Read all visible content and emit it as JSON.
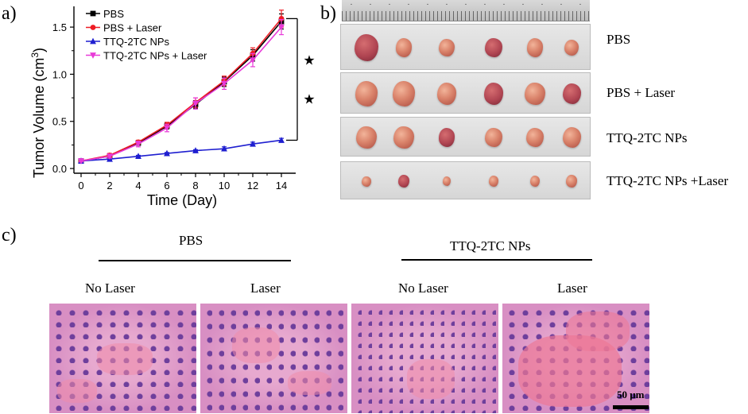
{
  "panels": {
    "a": "a)",
    "b": "b)",
    "c": "c)"
  },
  "chart_data": {
    "type": "line",
    "xlabel": "Time (Day)",
    "ylabel_main": "Tumor Volume (cm",
    "ylabel_sup": "3",
    "ylabel_close": ")",
    "xlim": [
      -0.5,
      15
    ],
    "ylim": [
      -0.05,
      1.72
    ],
    "xticks": [
      0,
      2,
      4,
      6,
      8,
      10,
      12,
      14
    ],
    "yticks": [
      0.0,
      0.5,
      1.0,
      1.5
    ],
    "ytick_labels": [
      "0.0",
      "0.5",
      "1.0",
      "1.5"
    ],
    "series": [
      {
        "name": "PBS",
        "color": "#000000",
        "marker": "square",
        "x": [
          0,
          2,
          4,
          6,
          8,
          10,
          12,
          14
        ],
        "y": [
          0.08,
          0.13,
          0.27,
          0.45,
          0.68,
          0.92,
          1.2,
          1.56
        ],
        "err": [
          0.01,
          0.02,
          0.02,
          0.03,
          0.04,
          0.05,
          0.06,
          0.08
        ]
      },
      {
        "name": "PBS + Laser",
        "color": "#ee1c24",
        "marker": "circle",
        "x": [
          0,
          2,
          4,
          6,
          8,
          10,
          12,
          14
        ],
        "y": [
          0.08,
          0.14,
          0.28,
          0.46,
          0.7,
          0.93,
          1.22,
          1.59
        ],
        "err": [
          0.01,
          0.02,
          0.02,
          0.03,
          0.05,
          0.05,
          0.06,
          0.09
        ]
      },
      {
        "name": "TTQ-2TC NPs",
        "color": "#1f1fd0",
        "marker": "triangle-up",
        "x": [
          0,
          2,
          4,
          6,
          8,
          10,
          12,
          14
        ],
        "y": [
          0.08,
          0.1,
          0.13,
          0.16,
          0.19,
          0.21,
          0.26,
          0.3
        ],
        "err": [
          0.01,
          0.01,
          0.01,
          0.01,
          0.01,
          0.02,
          0.02,
          0.02
        ]
      },
      {
        "name": "TTQ-2TC NPs + Laser",
        "color": "#e83ad8",
        "marker": "triangle-down",
        "x": [
          0,
          2,
          4,
          6,
          8,
          10,
          12,
          14
        ],
        "y": [
          0.08,
          0.13,
          0.26,
          0.43,
          0.69,
          0.9,
          1.15,
          1.5
        ],
        "err": [
          0.01,
          0.02,
          0.03,
          0.04,
          0.06,
          0.06,
          0.07,
          0.08
        ]
      }
    ],
    "significance": {
      "markers": [
        "★",
        "★"
      ]
    },
    "legend": "top-left"
  },
  "tumor_groups": [
    {
      "label": "PBS"
    },
    {
      "label": "PBS + Laser"
    },
    {
      "label": "TTQ-2TC NPs"
    },
    {
      "label": "TTQ-2TC NPs +Laser"
    }
  ],
  "histology": {
    "groups": [
      {
        "label": "PBS",
        "conditions": [
          "No Laser",
          "Laser"
        ]
      },
      {
        "label": "TTQ-2TC NPs",
        "conditions": [
          "No Laser",
          "Laser"
        ]
      }
    ],
    "scale_bar": "50 μm"
  }
}
